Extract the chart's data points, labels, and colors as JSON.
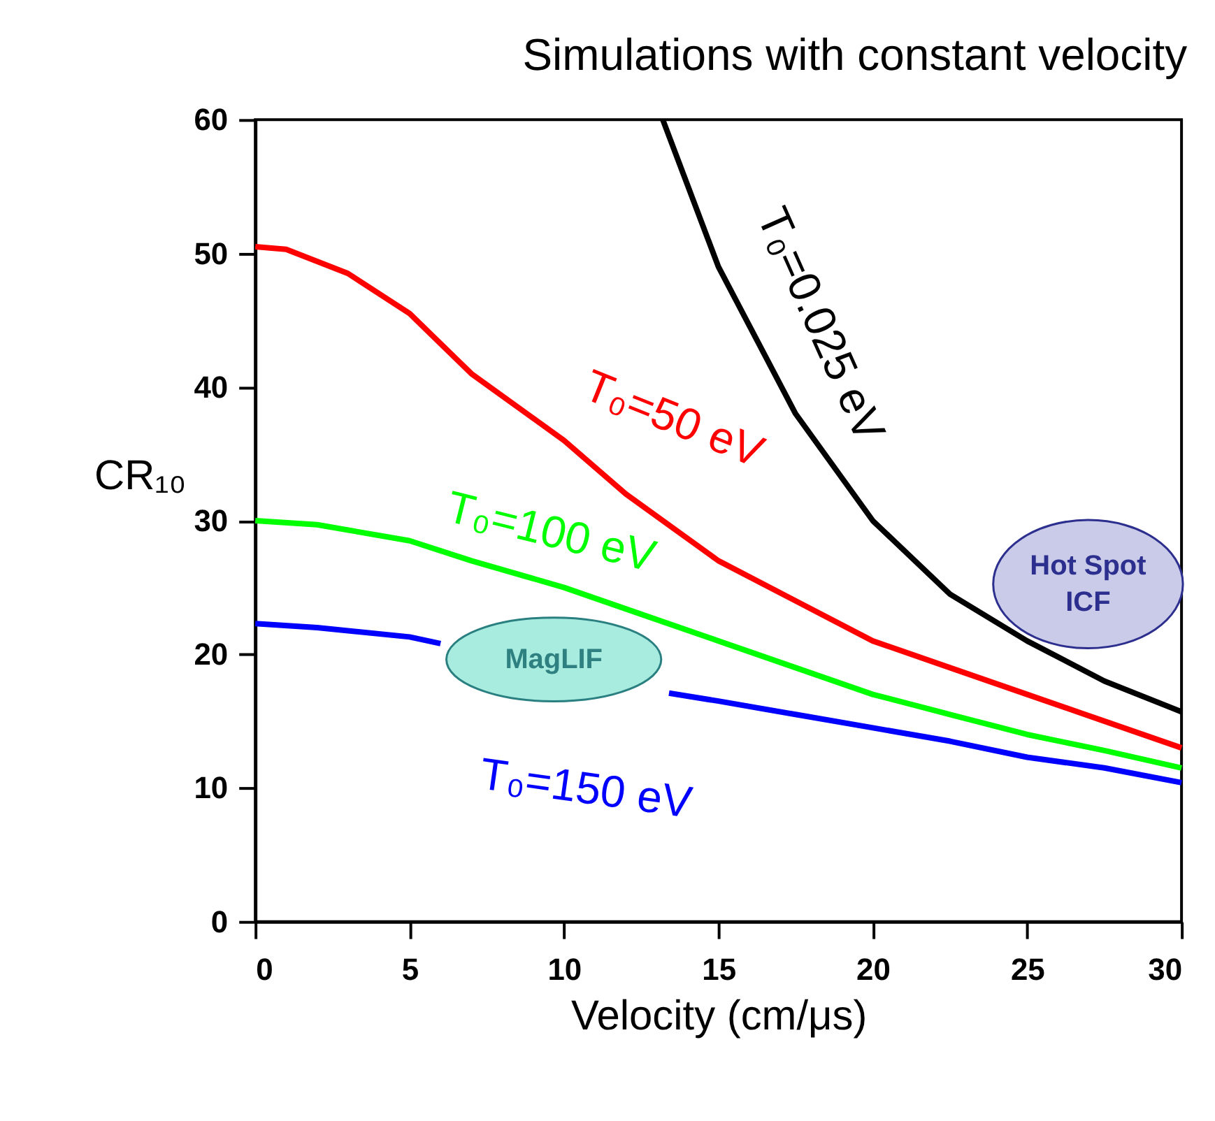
{
  "chart_data": {
    "type": "line",
    "title": "Simulations with constant velocity",
    "xlabel": "Velocity (cm/μs)",
    "ylabel": "CR₁₀",
    "xlim": [
      0,
      30
    ],
    "xticks": [
      0,
      5,
      10,
      15,
      20,
      25,
      30
    ],
    "ylim": [
      0,
      60
    ],
    "yticks": [
      0,
      10,
      20,
      30,
      40,
      50,
      60
    ],
    "grid": false,
    "line_style": "solid",
    "marker": "none",
    "series": [
      {
        "name": "T₀=0.025 eV",
        "color": "#000000",
        "x": [
          13.2,
          15,
          17.5,
          20,
          22.5,
          25,
          27.5,
          30
        ],
        "values": [
          60,
          49,
          38,
          30,
          24.5,
          21,
          18,
          15.7
        ]
      },
      {
        "name": "T₀=50 eV",
        "color": "#ff0000",
        "x": [
          0,
          1,
          3,
          5,
          7,
          10,
          12,
          15,
          17.5,
          20,
          22.5,
          25,
          27.5,
          30
        ],
        "values": [
          50.5,
          50.3,
          48.5,
          45.5,
          41,
          36,
          32,
          27,
          24,
          21,
          19,
          17,
          15,
          13
        ]
      },
      {
        "name": "T₀=100 eV",
        "color": "#00ff00",
        "x": [
          0,
          2,
          5,
          7,
          10,
          12.5,
          15,
          17.5,
          20,
          22.5,
          25,
          27.5,
          30
        ],
        "values": [
          30,
          29.7,
          28.5,
          27,
          25,
          23,
          21,
          19,
          17,
          15.5,
          14,
          12.8,
          11.5
        ]
      },
      {
        "name": "T₀=150 eV",
        "color": "#0000ff",
        "x": [
          0,
          2,
          5,
          6,
          7.5,
          10,
          12.5,
          13.4,
          15,
          17.5,
          20,
          22.5,
          25,
          27.5,
          30
        ],
        "values": [
          22.3,
          22,
          21.3,
          20.8,
          null,
          null,
          null,
          17.1,
          16.5,
          15.5,
          14.5,
          13.5,
          12.3,
          11.5,
          10.4
        ]
      }
    ],
    "annotations": [
      "MagLIF",
      "Hot Spot ICF"
    ]
  }
}
